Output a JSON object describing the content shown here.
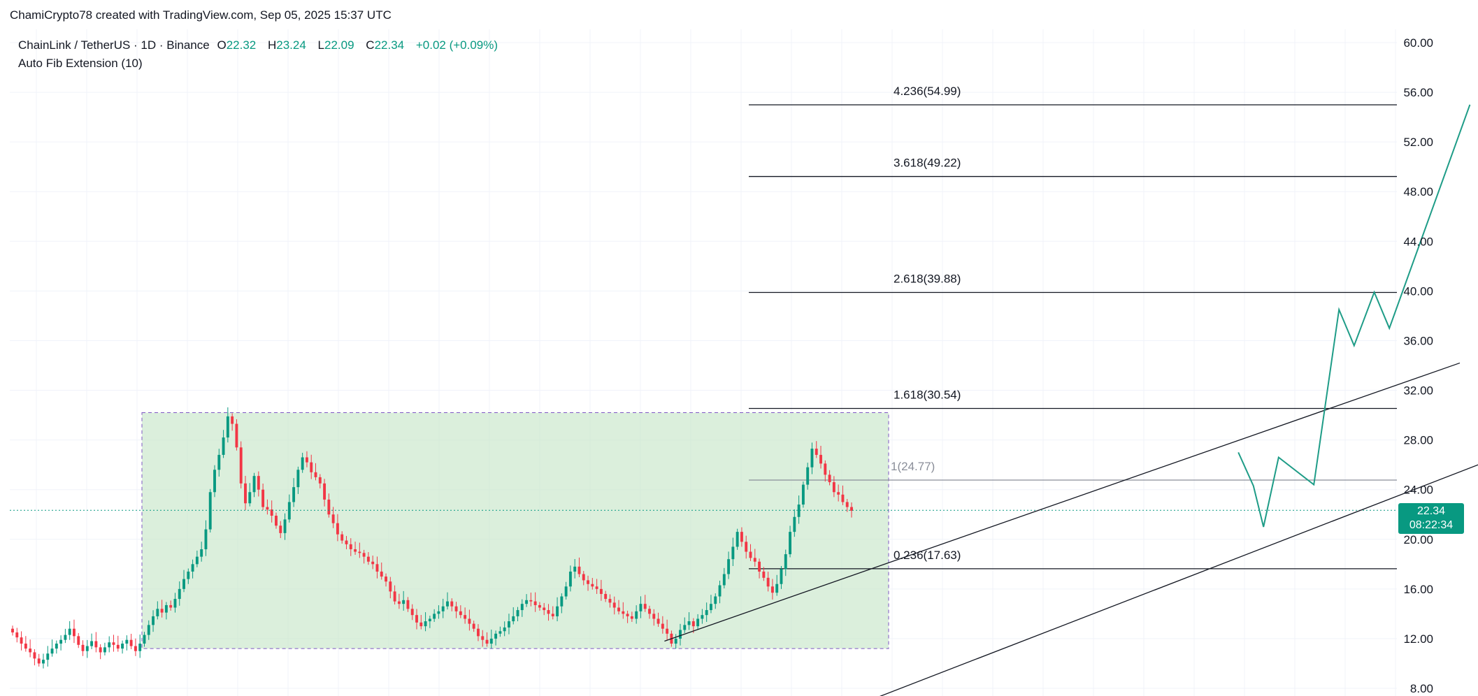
{
  "attribution": "ChamiCrypto78 created with TradingView.com, Sep 05, 2025 15:37 UTC",
  "legend": {
    "symbol": "ChainLink / TetherUS · 1D · Binance",
    "open_key": "O",
    "open": "22.32",
    "high_key": "H",
    "high": "23.24",
    "low_key": "L",
    "low": "22.09",
    "close_key": "C",
    "close": "22.34",
    "change": "+0.02 (+0.09%)",
    "indicator": "Auto Fib Extension (10)"
  },
  "colors": {
    "up": "#089981",
    "down": "#f23645",
    "projection": "#1e9c87",
    "box_fill": "#c8e6c9",
    "box_border": "#7e57c2",
    "fib_line": "#131722",
    "grid": "#f0f3fa"
  },
  "price_tag": {
    "price": "22.34",
    "countdown": "08:22:34"
  },
  "chart_data": {
    "type": "candlestick",
    "symbol": "LINK/USDT",
    "timeframe": "1D",
    "ylim": [
      8,
      60
    ],
    "y_ticks": [
      "60.00",
      "56.00",
      "52.00",
      "48.00",
      "44.00",
      "40.00",
      "36.00",
      "32.00",
      "28.00",
      "24.00",
      "20.00",
      "16.00",
      "12.00",
      "8.00"
    ],
    "last_price": 22.34,
    "fib_levels": [
      {
        "label": "4.236(54.99)",
        "value": 54.99
      },
      {
        "label": "3.618(49.22)",
        "value": 49.22
      },
      {
        "label": "2.618(39.88)",
        "value": 39.88
      },
      {
        "label": "1.618(30.54)",
        "value": 30.54
      },
      {
        "label": "1(24.77)",
        "value": 24.77
      },
      {
        "label": "0.236(17.63)",
        "value": 17.63
      }
    ],
    "range_box": {
      "top": 30.2,
      "bottom": 11.2
    },
    "closes": [
      12.5,
      12.1,
      11.6,
      11.2,
      10.9,
      10.4,
      10.0,
      10.3,
      10.8,
      11.2,
      11.6,
      11.9,
      12.3,
      12.8,
      12.2,
      11.5,
      11.0,
      11.4,
      11.8,
      11.3,
      10.9,
      11.3,
      11.7,
      11.5,
      11.2,
      11.6,
      11.9,
      11.4,
      11.0,
      11.6,
      12.3,
      13.1,
      13.8,
      14.4,
      14.1,
      14.7,
      14.5,
      15.2,
      16.0,
      16.8,
      17.4,
      18.0,
      18.6,
      19.2,
      20.8,
      23.8,
      25.6,
      26.8,
      28.2,
      29.9,
      29.3,
      27.4,
      24.5,
      22.9,
      23.8,
      25.1,
      24.0,
      22.6,
      22.4,
      21.9,
      21.1,
      20.5,
      21.6,
      23.0,
      24.2,
      25.6,
      26.6,
      26.2,
      25.4,
      25.0,
      24.5,
      23.2,
      22.0,
      21.3,
      20.4,
      19.9,
      19.6,
      19.2,
      19.0,
      18.9,
      18.6,
      18.2,
      18.0,
      17.4,
      17.0,
      16.6,
      15.8,
      15.0,
      14.8,
      15.1,
      14.4,
      13.9,
      13.3,
      13.0,
      13.4,
      13.6,
      14.0,
      14.2,
      14.6,
      15.0,
      14.6,
      14.2,
      13.9,
      13.6,
      13.2,
      12.8,
      12.2,
      11.9,
      11.6,
      12.0,
      12.4,
      12.6,
      12.9,
      13.4,
      13.8,
      14.3,
      14.8,
      15.1,
      15.0,
      14.7,
      14.5,
      14.3,
      14.0,
      13.8,
      14.6,
      15.4,
      16.2,
      17.4,
      17.8,
      17.2,
      16.7,
      16.4,
      16.2,
      16.0,
      15.6,
      15.2,
      14.9,
      14.5,
      14.2,
      14.0,
      13.8,
      13.6,
      14.2,
      14.8,
      14.4,
      14.0,
      13.6,
      13.2,
      12.8,
      12.4,
      11.6,
      12.0,
      12.7,
      13.1,
      13.4,
      13.0,
      13.6,
      13.9,
      14.3,
      14.8,
      15.4,
      16.3,
      17.2,
      18.4,
      19.4,
      20.6,
      19.8,
      19.0,
      18.5,
      18.2,
      17.4,
      16.9,
      16.2,
      15.7,
      16.4,
      17.6,
      18.8,
      20.6,
      21.8,
      22.8,
      24.4,
      25.8,
      27.3,
      26.8,
      26.1,
      25.2,
      24.6,
      23.8,
      23.6,
      23.0,
      22.6,
      22.3
    ],
    "projection_path": [
      [
        24.6,
        27.0
      ],
      [
        24.9,
        24.3
      ],
      [
        25.1,
        21.0
      ],
      [
        25.4,
        26.6
      ],
      [
        26.1,
        24.4
      ],
      [
        26.6,
        38.5
      ],
      [
        26.9,
        35.6
      ],
      [
        27.3,
        39.9
      ],
      [
        27.6,
        37.0
      ],
      [
        29.2,
        55.0
      ]
    ],
    "channel_upper": [
      [
        13.2,
        11.8
      ],
      [
        29.0,
        34.2
      ]
    ],
    "channel_lower": [
      [
        17.0,
        6.6
      ],
      [
        30.7,
        28.1
      ]
    ]
  }
}
